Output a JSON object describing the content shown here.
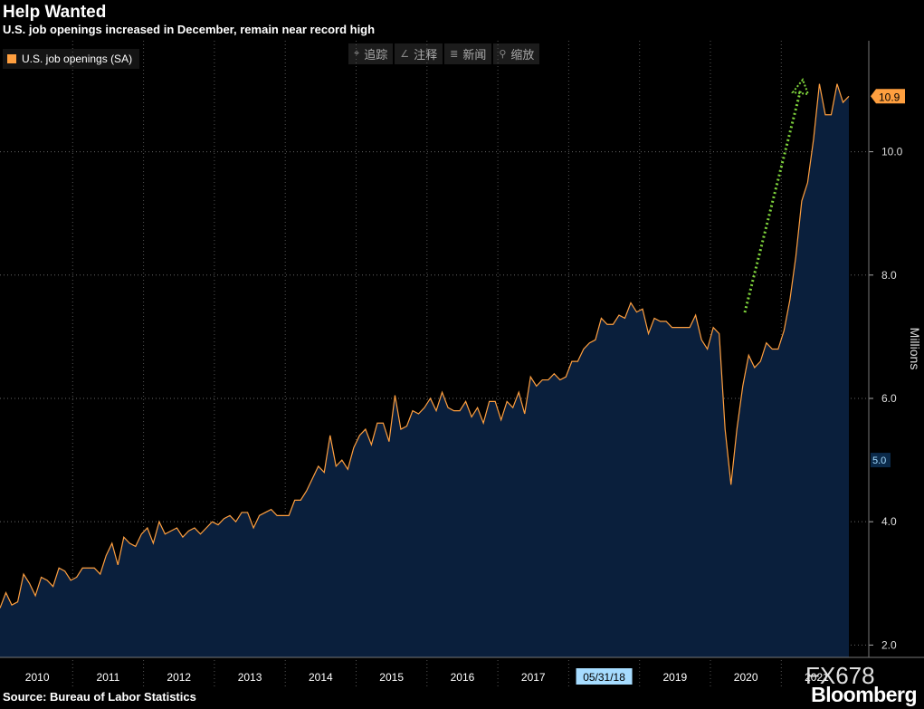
{
  "header": {
    "title": "Help Wanted",
    "subtitle": "U.S. job openings increased in December, remain near record high"
  },
  "legend": {
    "label": "U.S. job openings (SA)",
    "color": "#ff9f3f"
  },
  "toolbar": [
    {
      "icon": "crosshair-icon",
      "glyph": "⌖",
      "label": "追踪"
    },
    {
      "icon": "pencil-icon",
      "glyph": "∠",
      "label": "注释"
    },
    {
      "icon": "news-icon",
      "glyph": "≣",
      "label": "新闻"
    },
    {
      "icon": "zoom-icon",
      "glyph": "⚲",
      "label": "缩放"
    }
  ],
  "footer": {
    "source": "Source: Bureau of Labor Statistics",
    "brand": "Bloomberg",
    "code": "FX678"
  },
  "chart_data": {
    "type": "area",
    "ylabel": "Millions",
    "ylim": [
      1.8,
      11.8
    ],
    "y_ticks": [
      "2.0",
      "4.0",
      "6.0",
      "8.0",
      "10.0"
    ],
    "y_tick_values": [
      2,
      4,
      6,
      8,
      10
    ],
    "x_labels": [
      "2010",
      "2011",
      "2012",
      "2013",
      "2014",
      "2015",
      "2016",
      "2017",
      "05/31/18",
      "2019",
      "2020",
      "2021"
    ],
    "last_value_label": "10.9",
    "marker_label": "5.0",
    "colors": {
      "line": "#ff9f3f",
      "fill": "#0a1f3c",
      "arrow": "#7fd43c",
      "last_label_bg": "#ff9f3f",
      "marker_bg": "#0b2a4a"
    },
    "series": [
      {
        "name": "U.S. job openings (SA)",
        "start": "2010-01",
        "frequency": "monthly",
        "values": [
          2.6,
          2.85,
          2.65,
          2.7,
          3.15,
          3.0,
          2.8,
          3.1,
          3.05,
          2.95,
          3.25,
          3.2,
          3.05,
          3.1,
          3.25,
          3.25,
          3.25,
          3.15,
          3.45,
          3.65,
          3.3,
          3.75,
          3.65,
          3.6,
          3.8,
          3.9,
          3.65,
          4.0,
          3.8,
          3.85,
          3.9,
          3.75,
          3.85,
          3.9,
          3.8,
          3.9,
          4.0,
          3.95,
          4.05,
          4.1,
          4.0,
          4.15,
          4.15,
          3.9,
          4.1,
          4.15,
          4.2,
          4.1,
          4.1,
          4.1,
          4.35,
          4.35,
          4.5,
          4.7,
          4.9,
          4.8,
          5.4,
          4.9,
          5.0,
          4.85,
          5.2,
          5.4,
          5.5,
          5.25,
          5.6,
          5.6,
          5.3,
          6.05,
          5.5,
          5.55,
          5.8,
          5.75,
          5.85,
          6.0,
          5.8,
          6.1,
          5.85,
          5.8,
          5.8,
          5.95,
          5.7,
          5.85,
          5.6,
          5.95,
          5.95,
          5.65,
          5.95,
          5.85,
          6.1,
          5.75,
          6.35,
          6.2,
          6.3,
          6.3,
          6.4,
          6.3,
          6.35,
          6.6,
          6.6,
          6.8,
          6.9,
          6.95,
          7.3,
          7.2,
          7.2,
          7.35,
          7.3,
          7.55,
          7.4,
          7.45,
          7.05,
          7.3,
          7.25,
          7.25,
          7.15,
          7.15,
          7.15,
          7.15,
          7.35,
          6.95,
          6.8,
          7.15,
          7.05,
          5.5,
          4.6,
          5.5,
          6.2,
          6.7,
          6.5,
          6.6,
          6.9,
          6.8,
          6.8,
          7.1,
          7.6,
          8.3,
          9.2,
          9.5,
          10.2,
          11.1,
          10.6,
          10.6,
          11.1,
          10.8,
          10.9
        ]
      }
    ]
  }
}
